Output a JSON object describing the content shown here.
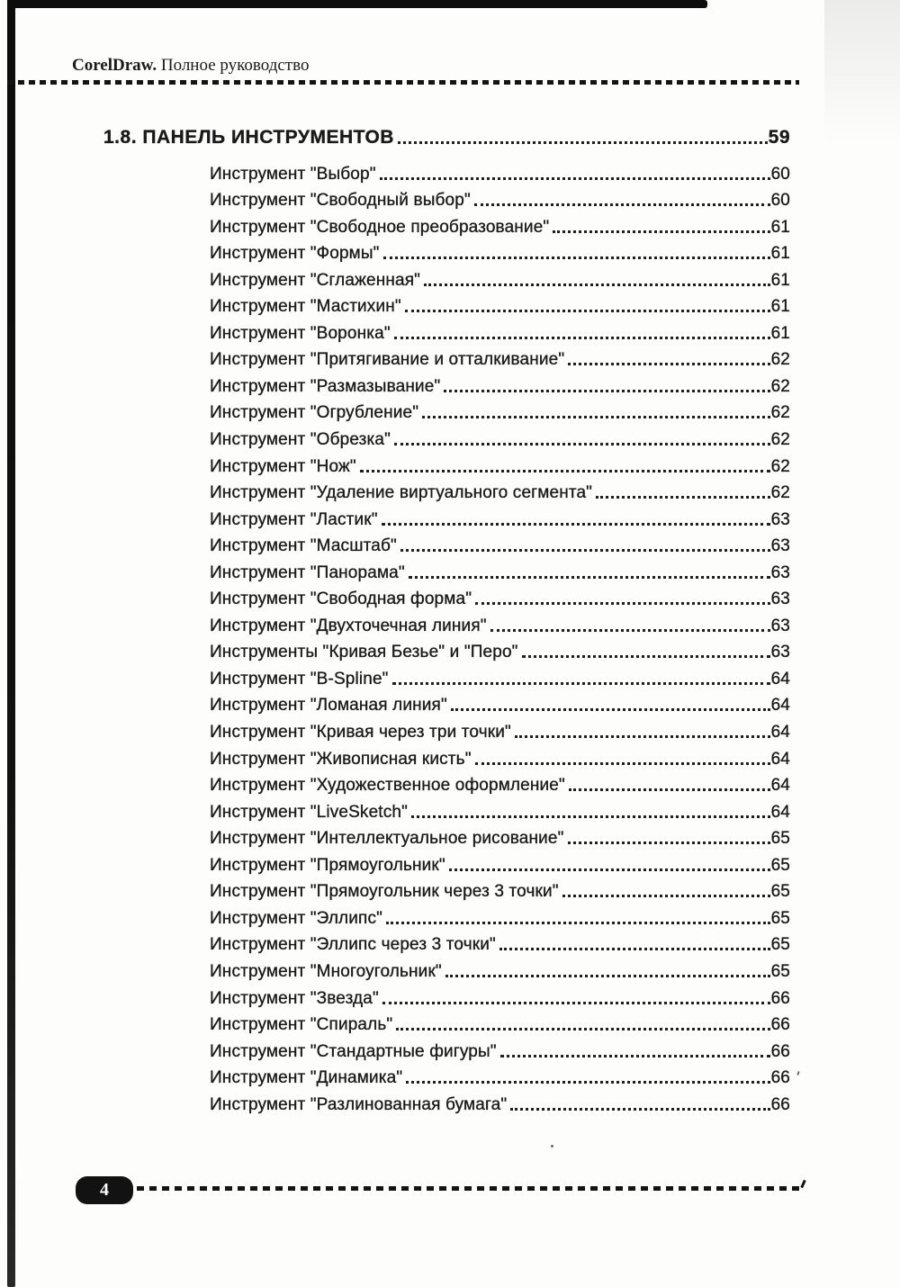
{
  "header": {
    "brand": "CorelDraw.",
    "subtitle": " Полное руководство"
  },
  "section": {
    "label": "1.8. ПАНЕЛЬ ИНСТРУМЕНТОВ",
    "page": "59"
  },
  "toc_entries": [
    {
      "label": "Инструмент \"Выбор\"",
      "page": "60"
    },
    {
      "label": "Инструмент \"Свободный выбор\"",
      "page": "60"
    },
    {
      "label": "Инструмент \"Свободное преобразование\"",
      "page": "61"
    },
    {
      "label": "Инструмент \"Формы\"",
      "page": "61"
    },
    {
      "label": "Инструмент \"Сглаженная\"",
      "page": "61"
    },
    {
      "label": "Инструмент \"Мастихин\"",
      "page": "61"
    },
    {
      "label": "Инструмент \"Воронка\"",
      "page": "61"
    },
    {
      "label": "Инструмент \"Притягивание и отталкивание\"",
      "page": "62"
    },
    {
      "label": "Инструмент \"Размазывание\"",
      "page": "62"
    },
    {
      "label": "Инструмент \"Огрубление\"",
      "page": "62"
    },
    {
      "label": "Инструмент \"Обрезка\"",
      "page": "62"
    },
    {
      "label": "Инструмент \"Нож\"",
      "page": "62"
    },
    {
      "label": "Инструмент \"Удаление виртуального сегмента\"",
      "page": "62"
    },
    {
      "label": "Инструмент \"Ластик\"",
      "page": "63"
    },
    {
      "label": "Инструмент \"Масштаб\"",
      "page": "63"
    },
    {
      "label": "Инструмент \"Панорама\"",
      "page": "63"
    },
    {
      "label": "Инструмент \"Свободная форма\"",
      "page": "63"
    },
    {
      "label": "Инструмент \"Двухточечная линия\"",
      "page": "63"
    },
    {
      "label": "Инструменты \"Кривая Безье\" и \"Перо\"",
      "page": "63"
    },
    {
      "label": "Инструмент \"B-Spline\"",
      "page": "64"
    },
    {
      "label": "Инструмент \"Ломаная линия\"",
      "page": "64"
    },
    {
      "label": "Инструмент \"Кривая через три точки\"",
      "page": "64"
    },
    {
      "label": "Инструмент \"Живописная кисть\"",
      "page": "64"
    },
    {
      "label": "Инструмент \"Художественное оформление\"",
      "page": "64"
    },
    {
      "label": "Инструмент \"LiveSketch\"",
      "page": "64"
    },
    {
      "label": "Инструмент \"Интеллектуальное рисование\"",
      "page": "65"
    },
    {
      "label": "Инструмент \"Прямоугольник\"",
      "page": "65"
    },
    {
      "label": "Инструмент \"Прямоугольник через 3 точки\"",
      "page": "65"
    },
    {
      "label": "Инструмент \"Эллипс\"",
      "page": "65"
    },
    {
      "label": "Инструмент \"Эллипс через 3 точки\"",
      "page": "65"
    },
    {
      "label": "Инструмент \"Многоугольник\"",
      "page": "65"
    },
    {
      "label": "Инструмент \"Звезда\"",
      "page": "66"
    },
    {
      "label": "Инструмент \"Спираль\"",
      "page": "66"
    },
    {
      "label": "Инструмент \"Стандартные фигуры\"",
      "page": "66"
    },
    {
      "label": "Инструмент \"Динамика\"",
      "page": "66"
    },
    {
      "label": "Инструмент \"Разлинованная бумага\"",
      "page": "66"
    }
  ],
  "footer": {
    "page_number": "4"
  },
  "colors": {
    "ink": "#1a1a1a",
    "paper": "#fdfdfc",
    "badge": "#121212"
  }
}
